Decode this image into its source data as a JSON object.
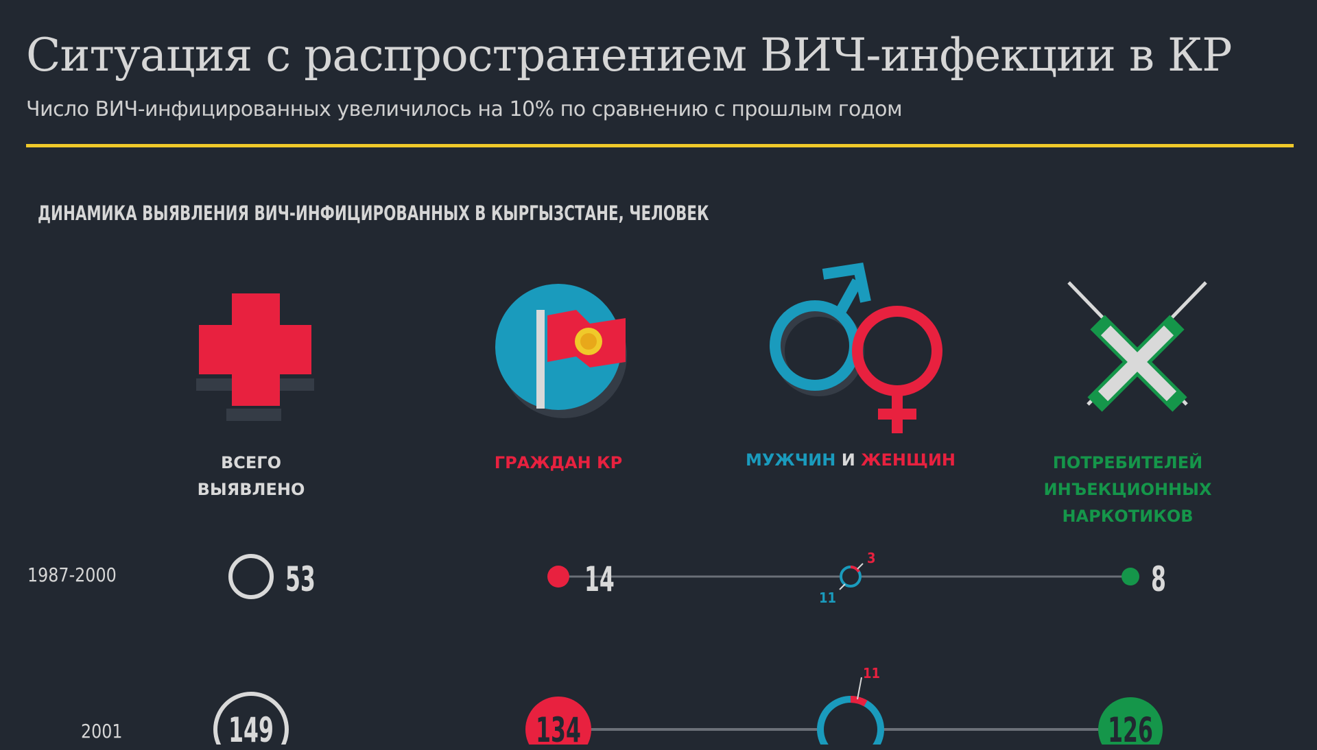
{
  "header": {
    "title": "Ситуация с распространением ВИЧ-инфекции в КР",
    "subtitle": "Число ВИЧ-инфицированных увеличилось на 10% по сравнению с прошлым годом"
  },
  "section_title": "ДИНАМИКА ВЫЯВЛЕНИЯ ВИЧ-ИНФИЦИРОВАННЫХ В КЫРГЫЗСТАНЕ, ЧЕЛОВЕК",
  "colors": {
    "background": "#222831",
    "accent": "#f0c92a",
    "red": "#e8213f",
    "blue": "#1a9bbd",
    "green": "#15964a",
    "white": "#d9d9d9"
  },
  "columns": {
    "total": {
      "line1": "ВСЕГО",
      "line2": "ВЫЯВЛЕНО",
      "icon": "red-cross-icon"
    },
    "citizens": {
      "label": "ГРАЖДАН КР",
      "icon": "kyrgyz-flag-icon"
    },
    "gender": {
      "men": "МУЖЧИН",
      "and": "И",
      "women": "ЖЕНЩИН",
      "icon": "male-female-icon"
    },
    "idu": {
      "line1": "ПОТРЕБИТЕЛЕЙ",
      "line2": "ИНЪЕКЦИОННЫХ",
      "line3": "НАРКОТИКОВ",
      "icon": "crossed-syringes-icon"
    }
  },
  "chart_data": {
    "type": "table",
    "title": "ДИНАМИКА ВЫЯВЛЕНИЯ ВИЧ-ИНФИЦИРОВАННЫХ В КЫРГЫЗСТАНЕ, ЧЕЛОВЕК",
    "rows": [
      {
        "period": "1987-2000",
        "total": "53",
        "citizens": "14",
        "men": "11",
        "women": "3",
        "idu": "8"
      },
      {
        "period": "2001",
        "total": "149",
        "citizens": "134",
        "women": "11",
        "idu": "126"
      }
    ]
  }
}
